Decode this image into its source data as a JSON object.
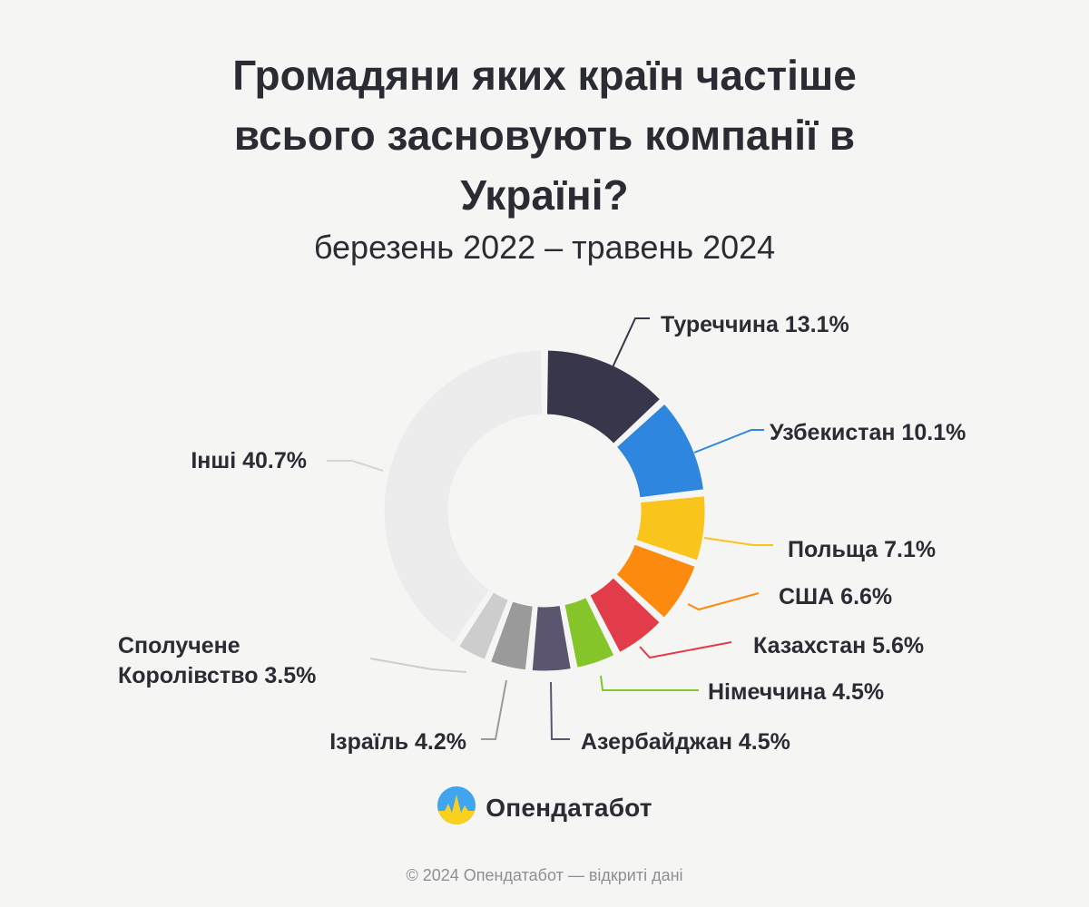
{
  "header": {
    "title_lines": [
      "Громадяни яких країн частіше",
      "всього засновують компанії в",
      "Україні?"
    ],
    "subtitle": "березень 2022 – травень 2024"
  },
  "chart_data": {
    "type": "pie",
    "title": "Громадяни яких країн частіше всього засновують компанії в Україні?",
    "subtitle": "березень 2022 – травень 2024",
    "unit": "%",
    "slices": [
      {
        "label": "Туреччина",
        "value": 13.1,
        "color": "#37364a"
      },
      {
        "label": "Узбекистан",
        "value": 10.1,
        "color": "#2e86de"
      },
      {
        "label": "Польща",
        "value": 7.1,
        "color": "#f9c41b"
      },
      {
        "label": "США",
        "value": 6.6,
        "color": "#fb8a0f"
      },
      {
        "label": "Казахстан",
        "value": 5.6,
        "color": "#e23b4a"
      },
      {
        "label": "Німеччина",
        "value": 4.5,
        "color": "#86c52a"
      },
      {
        "label": "Азербайджан",
        "value": 4.5,
        "color": "#5c5570"
      },
      {
        "label": "Ізраїль",
        "value": 4.2,
        "color": "#9a9a9a"
      },
      {
        "label": "Сполучене Королівство",
        "value": 3.5,
        "color": "#cdcdcd"
      },
      {
        "label": "Інші",
        "value": 40.7,
        "color": "#ececec"
      }
    ],
    "labels_text": [
      [
        "Туреччина 13.1%"
      ],
      [
        "Узбекистан 10.1%"
      ],
      [
        "Польща 7.1%"
      ],
      [
        "США 6.6%"
      ],
      [
        "Казахстан 5.6%"
      ],
      [
        "Німеччина 4.5%"
      ],
      [
        "Азербайджан 4.5%"
      ],
      [
        "Ізраїль 4.2%"
      ],
      [
        "Сполучене",
        "Королівство 3.5%"
      ],
      [
        "Інші 40.7%"
      ]
    ]
  },
  "brand": {
    "name": "Опендатабот",
    "logo_icon": "opendatabot-logo-icon"
  },
  "footer": {
    "text": "© 2024 Опендатабот — відкриті дані"
  }
}
